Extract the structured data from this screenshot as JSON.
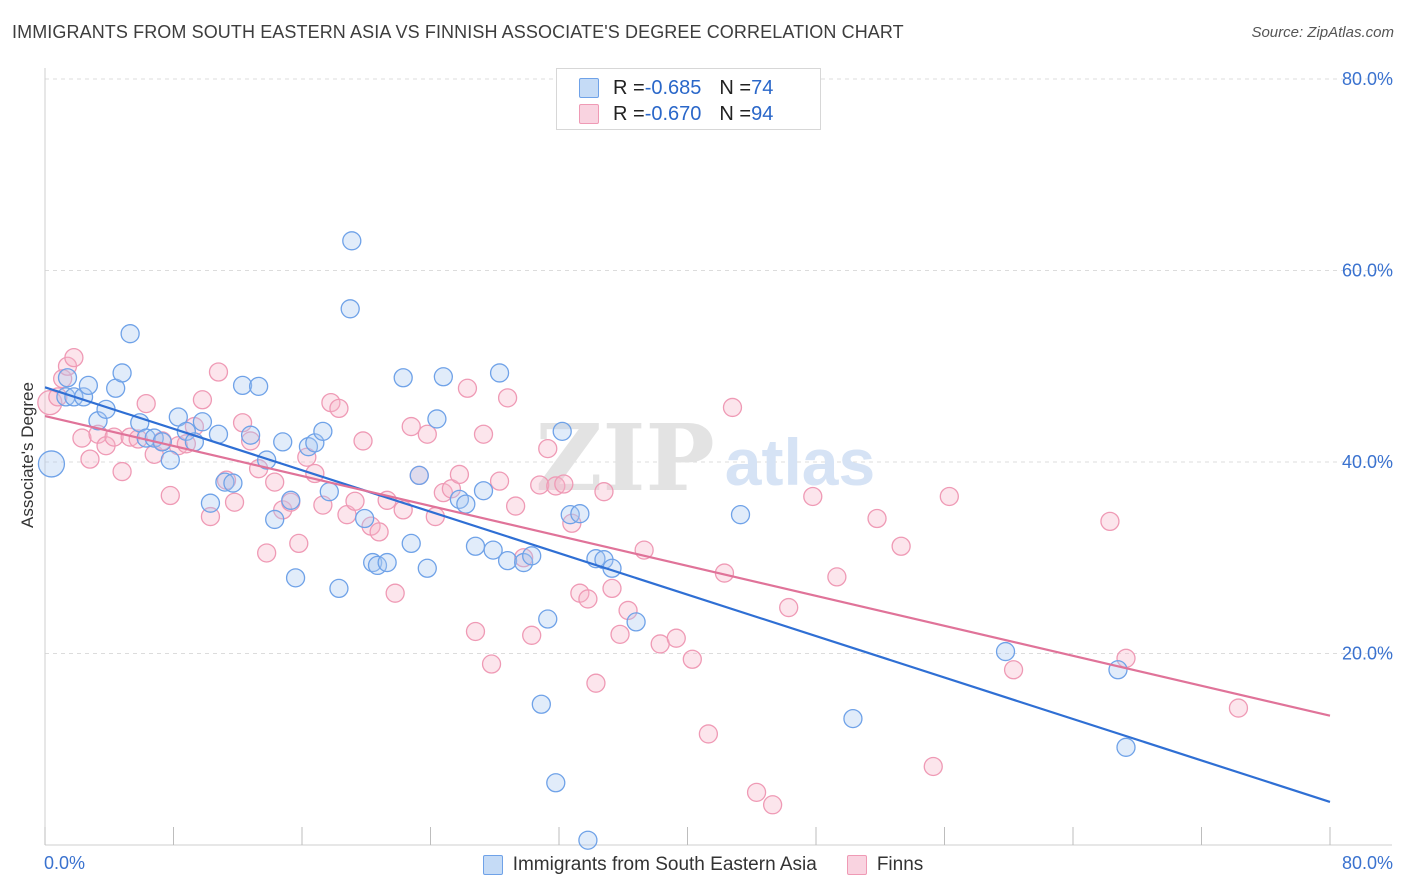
{
  "title": "IMMIGRANTS FROM SOUTH EASTERN ASIA VS FINNISH ASSOCIATE'S DEGREE CORRELATION CHART",
  "source": "Source: ZipAtlas.com",
  "watermark": {
    "zip": "ZIP",
    "atlas": "atlas"
  },
  "legend_top": [
    {
      "r_label": "R = ",
      "r_value": "-0.685",
      "n_label": "N = ",
      "n_value": "74",
      "color": "#6fa2e8"
    },
    {
      "r_label": "R = ",
      "r_value": "-0.670",
      "n_label": "N = ",
      "n_value": "94",
      "color": "#ef9ab5"
    }
  ],
  "chart_data": {
    "type": "scatter",
    "title": "IMMIGRANTS FROM SOUTH EASTERN ASIA VS FINNISH ASSOCIATE'S DEGREE CORRELATION CHART",
    "xlabel": "",
    "ylabel": "Associate's Degree",
    "xlim": [
      0,
      80
    ],
    "ylim": [
      0,
      80
    ],
    "x_tick_labels": [
      "0.0%",
      "80.0%"
    ],
    "y_ticks": [
      20,
      40,
      60,
      80
    ],
    "y_tick_labels": [
      "20.0%",
      "40.0%",
      "60.0%",
      "80.0%"
    ],
    "grid": true,
    "legend_position": "bottom",
    "series": [
      {
        "name": "Immigrants from South Eastern Asia",
        "color": "#6fa2e8",
        "line_color": "#2f6fd4",
        "trend": {
          "x": [
            0,
            80
          ],
          "y": [
            47.8,
            4.5
          ]
        },
        "points": [
          [
            0.4,
            39.8
          ],
          [
            1.3,
            46.8
          ],
          [
            1.4,
            48.8
          ],
          [
            1.8,
            46.8
          ],
          [
            2.4,
            46.8
          ],
          [
            2.7,
            48.0
          ],
          [
            3.3,
            44.3
          ],
          [
            3.8,
            45.5
          ],
          [
            4.4,
            47.7
          ],
          [
            4.8,
            49.3
          ],
          [
            5.3,
            53.4
          ],
          [
            5.9,
            44.1
          ],
          [
            6.3,
            42.5
          ],
          [
            6.8,
            42.5
          ],
          [
            7.3,
            42.1
          ],
          [
            7.8,
            40.2
          ],
          [
            8.3,
            44.7
          ],
          [
            8.8,
            43.2
          ],
          [
            9.3,
            42.1
          ],
          [
            9.8,
            44.2
          ],
          [
            10.3,
            35.7
          ],
          [
            10.8,
            42.9
          ],
          [
            11.2,
            37.9
          ],
          [
            11.7,
            37.8
          ],
          [
            12.3,
            48.0
          ],
          [
            12.8,
            42.8
          ],
          [
            13.3,
            47.9
          ],
          [
            13.8,
            40.2
          ],
          [
            14.3,
            34.0
          ],
          [
            14.8,
            42.1
          ],
          [
            15.3,
            36.0
          ],
          [
            15.6,
            27.9
          ],
          [
            16.4,
            41.6
          ],
          [
            16.8,
            42.0
          ],
          [
            17.3,
            43.2
          ],
          [
            17.7,
            36.9
          ],
          [
            18.3,
            26.8
          ],
          [
            19.0,
            56.0
          ],
          [
            19.1,
            63.1
          ],
          [
            19.9,
            34.1
          ],
          [
            20.4,
            29.5
          ],
          [
            20.7,
            29.2
          ],
          [
            21.3,
            29.5
          ],
          [
            22.3,
            48.8
          ],
          [
            22.8,
            31.5
          ],
          [
            23.3,
            38.6
          ],
          [
            23.8,
            28.9
          ],
          [
            24.4,
            44.5
          ],
          [
            24.8,
            48.9
          ],
          [
            25.8,
            36.1
          ],
          [
            26.2,
            35.6
          ],
          [
            26.8,
            31.2
          ],
          [
            27.3,
            37.0
          ],
          [
            27.9,
            30.8
          ],
          [
            28.3,
            49.3
          ],
          [
            28.8,
            29.7
          ],
          [
            29.8,
            29.5
          ],
          [
            30.3,
            30.2
          ],
          [
            30.9,
            14.7
          ],
          [
            31.3,
            23.6
          ],
          [
            31.8,
            6.5
          ],
          [
            32.2,
            43.2
          ],
          [
            32.7,
            34.5
          ],
          [
            33.3,
            34.6
          ],
          [
            33.8,
            0.5
          ],
          [
            34.3,
            29.9
          ],
          [
            34.8,
            29.8
          ],
          [
            35.3,
            28.9
          ],
          [
            36.8,
            23.3
          ],
          [
            43.3,
            34.5
          ],
          [
            50.3,
            13.2
          ],
          [
            59.8,
            20.2
          ],
          [
            66.8,
            18.3
          ],
          [
            67.3,
            10.2
          ]
        ]
      },
      {
        "name": "Finns",
        "color": "#ef9ab5",
        "line_color": "#e07399",
        "trend": {
          "x": [
            0,
            80
          ],
          "y": [
            44.8,
            13.5
          ]
        },
        "points": [
          [
            0.3,
            46.2
          ],
          [
            0.8,
            46.8
          ],
          [
            1.1,
            48.7
          ],
          [
            1.4,
            50.0
          ],
          [
            1.8,
            50.9
          ],
          [
            2.3,
            42.5
          ],
          [
            2.8,
            40.3
          ],
          [
            3.3,
            42.9
          ],
          [
            3.8,
            41.7
          ],
          [
            4.3,
            42.6
          ],
          [
            4.8,
            39.0
          ],
          [
            5.3,
            42.6
          ],
          [
            5.8,
            42.4
          ],
          [
            6.3,
            46.1
          ],
          [
            6.8,
            40.8
          ],
          [
            7.3,
            42.2
          ],
          [
            7.8,
            36.5
          ],
          [
            8.3,
            41.7
          ],
          [
            8.8,
            41.9
          ],
          [
            9.3,
            43.7
          ],
          [
            9.8,
            46.5
          ],
          [
            10.3,
            34.3
          ],
          [
            10.8,
            49.4
          ],
          [
            11.3,
            38.1
          ],
          [
            11.8,
            35.8
          ],
          [
            12.3,
            44.1
          ],
          [
            12.8,
            42.2
          ],
          [
            13.3,
            39.3
          ],
          [
            13.8,
            30.5
          ],
          [
            14.3,
            37.9
          ],
          [
            14.8,
            35.0
          ],
          [
            15.3,
            35.8
          ],
          [
            15.8,
            31.5
          ],
          [
            16.3,
            40.5
          ],
          [
            16.8,
            38.8
          ],
          [
            17.3,
            35.5
          ],
          [
            17.8,
            46.2
          ],
          [
            18.3,
            45.6
          ],
          [
            18.8,
            34.5
          ],
          [
            19.3,
            35.9
          ],
          [
            19.8,
            42.2
          ],
          [
            20.3,
            33.3
          ],
          [
            20.8,
            32.7
          ],
          [
            21.3,
            36.0
          ],
          [
            21.8,
            26.3
          ],
          [
            22.3,
            35.0
          ],
          [
            22.8,
            43.7
          ],
          [
            23.3,
            38.6
          ],
          [
            23.8,
            42.9
          ],
          [
            24.3,
            34.3
          ],
          [
            24.8,
            36.8
          ],
          [
            25.3,
            37.2
          ],
          [
            25.8,
            38.7
          ],
          [
            26.3,
            47.7
          ],
          [
            26.8,
            22.3
          ],
          [
            27.3,
            42.9
          ],
          [
            27.8,
            18.9
          ],
          [
            28.3,
            38.0
          ],
          [
            28.8,
            46.7
          ],
          [
            29.3,
            35.4
          ],
          [
            29.8,
            30.0
          ],
          [
            30.3,
            21.9
          ],
          [
            30.8,
            37.6
          ],
          [
            31.3,
            41.4
          ],
          [
            31.8,
            37.5
          ],
          [
            32.3,
            37.7
          ],
          [
            32.8,
            33.6
          ],
          [
            33.3,
            26.3
          ],
          [
            33.8,
            25.7
          ],
          [
            34.3,
            16.9
          ],
          [
            34.8,
            36.9
          ],
          [
            35.3,
            26.8
          ],
          [
            35.8,
            22.0
          ],
          [
            36.3,
            24.5
          ],
          [
            37.3,
            30.8
          ],
          [
            38.3,
            21.0
          ],
          [
            39.3,
            21.6
          ],
          [
            40.3,
            19.4
          ],
          [
            41.3,
            11.6
          ],
          [
            42.3,
            28.4
          ],
          [
            42.8,
            45.7
          ],
          [
            44.3,
            5.5
          ],
          [
            45.3,
            4.2
          ],
          [
            46.3,
            24.8
          ],
          [
            47.8,
            36.4
          ],
          [
            49.3,
            28.0
          ],
          [
            51.8,
            34.1
          ],
          [
            53.3,
            31.2
          ],
          [
            55.3,
            8.2
          ],
          [
            56.3,
            36.4
          ],
          [
            60.3,
            18.3
          ],
          [
            66.3,
            33.8
          ],
          [
            67.3,
            19.5
          ],
          [
            74.3,
            14.3
          ]
        ]
      }
    ]
  }
}
